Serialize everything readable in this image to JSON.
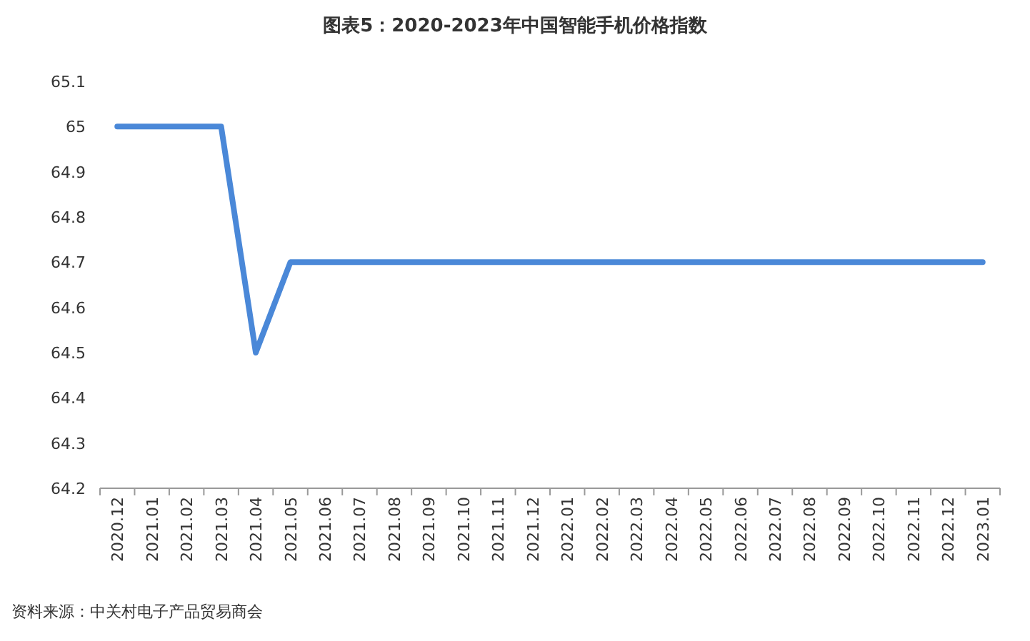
{
  "chart_data": {
    "type": "line",
    "title": "图表5：2020-2023年中国智能手机价格指数",
    "annotations": [
      "资料来源：中关村电子产品贸易商会"
    ],
    "categories": [
      "2020.12",
      "2021.01",
      "2021.02",
      "2021.03",
      "2021.04",
      "2021.05",
      "2021.06",
      "2021.07",
      "2021.08",
      "2021.09",
      "2021.10",
      "2021.11",
      "2021.12",
      "2022.01",
      "2022.02",
      "2022.03",
      "2022.04",
      "2022.05",
      "2022.06",
      "2022.07",
      "2022.08",
      "2022.09",
      "2022.10",
      "2022.11",
      "2022.12",
      "2023.01"
    ],
    "series": [
      {
        "color": "#4a88d8",
        "values": [
          65,
          65,
          65,
          65,
          64.5,
          64.7,
          64.7,
          64.7,
          64.7,
          64.7,
          64.7,
          64.7,
          64.7,
          64.7,
          64.7,
          64.7,
          64.7,
          64.7,
          64.7,
          64.7,
          64.7,
          64.7,
          64.7,
          64.7,
          64.7,
          64.7
        ]
      }
    ],
    "ylim": [
      64.2,
      65.1
    ],
    "yticks": [
      64.2,
      64.3,
      64.4,
      64.5,
      64.6,
      64.7,
      64.8,
      64.9,
      65,
      65.1
    ]
  }
}
